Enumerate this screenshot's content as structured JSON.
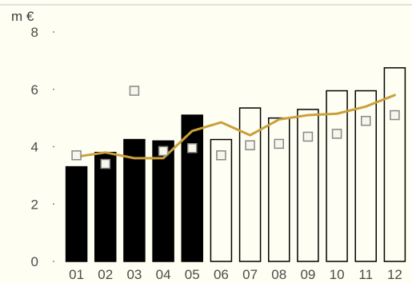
{
  "chart_data": {
    "type": "bar",
    "title": "",
    "ylabel": "m €",
    "xlabel": "",
    "ylim": [
      0,
      8
    ],
    "yticks": [
      0,
      2,
      4,
      6,
      8
    ],
    "categories": [
      "01",
      "02",
      "03",
      "04",
      "05",
      "06",
      "07",
      "08",
      "09",
      "10",
      "11",
      "12"
    ],
    "series": [
      {
        "type": "bar",
        "values": [
          3.3,
          3.8,
          4.25,
          4.2,
          5.1,
          4.25,
          5.35,
          5.0,
          5.3,
          5.95,
          5.95,
          6.75
        ],
        "fill_colors": [
          "#000000",
          "#000000",
          "#000000",
          "#000000",
          "#000000",
          "#fffef3",
          "#fffef3",
          "#fffef3",
          "#fffef3",
          "#fffef3",
          "#fffef3",
          "#fffef3"
        ]
      },
      {
        "type": "line",
        "values": [
          3.65,
          3.8,
          3.6,
          3.6,
          4.55,
          4.85,
          4.4,
          4.95,
          5.1,
          5.15,
          5.4,
          5.8
        ],
        "color": "#c9a03a"
      },
      {
        "type": "scatter",
        "marker": "square",
        "values": [
          3.7,
          3.4,
          5.95,
          3.85,
          3.95,
          3.7,
          4.05,
          4.1,
          4.35,
          4.45,
          4.9,
          5.1
        ],
        "color": "#888888"
      }
    ],
    "grid": false,
    "legend": "none"
  }
}
